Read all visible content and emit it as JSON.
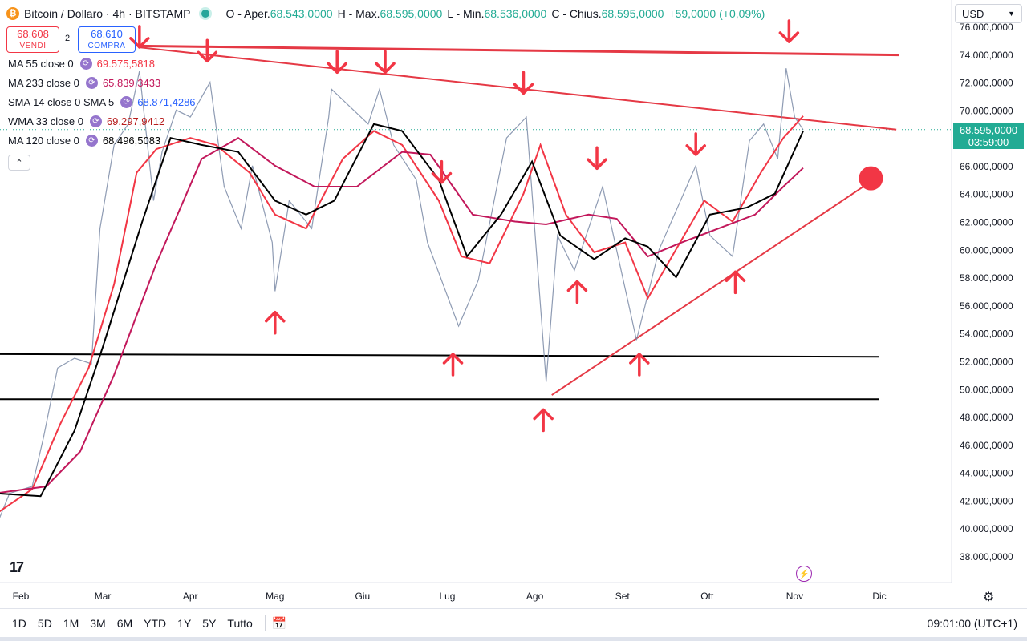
{
  "header": {
    "coin_symbol": "₿",
    "title": "Bitcoin / Dollaro · 4h · BITSTAMP",
    "ohlc": [
      {
        "k": "O - Aper.",
        "v": "68.543,0000"
      },
      {
        "k": "H - Max.",
        "v": "68.595,0000"
      },
      {
        "k": "L - Min.",
        "v": "68.536,0000"
      },
      {
        "k": "C - Chius.",
        "v": "68.595,0000"
      },
      {
        "k": "",
        "v": "+59,0000 (+0,09%)"
      }
    ]
  },
  "trade": {
    "sell_price": "68.608",
    "sell_label": "VENDI",
    "spread": "2",
    "buy_price": "68.610",
    "buy_label": "COMPRA"
  },
  "indicators": [
    {
      "label": "MA 55 close 0",
      "value": "69.575,5818",
      "color": "#f23645"
    },
    {
      "label": "MA 233 close 0",
      "value": "65.839,3433",
      "color": "#c2185b"
    },
    {
      "label": "SMA 14 close 0 SMA 5",
      "value": "68.871,4286",
      "color": "#2962ff"
    },
    {
      "label": "WMA 33 close 0",
      "value": "69.297,9412",
      "color": "#b71c1c"
    },
    {
      "label": "MA 120 close 0",
      "value": "68.496,5083",
      "color": "#000000"
    }
  ],
  "currency": "USD",
  "price_label": {
    "price": "68.595,0000",
    "countdown": "03:59:00"
  },
  "timeframes": [
    "1D",
    "5D",
    "1M",
    "3M",
    "6M",
    "YTD",
    "1Y",
    "5Y",
    "Tutto"
  ],
  "clock": "09:01:00 (UTC+1)",
  "logo": "17",
  "chart_data": {
    "type": "line",
    "symbol": "BTC/USD",
    "interval": "4h",
    "ylim": [
      36800,
      76800
    ],
    "y_ticks": [
      {
        "value": 38000,
        "label": "38.000,0000"
      },
      {
        "value": 40000,
        "label": "40.000,0000"
      },
      {
        "value": 42000,
        "label": "42.000,0000"
      },
      {
        "value": 44000,
        "label": "44.000,0000"
      },
      {
        "value": 46000,
        "label": "46.000,0000"
      },
      {
        "value": 48000,
        "label": "48.000,0000"
      },
      {
        "value": 50000,
        "label": "50.000,0000"
      },
      {
        "value": 52000,
        "label": "52.000,0000"
      },
      {
        "value": 54000,
        "label": "54.000,0000"
      },
      {
        "value": 56000,
        "label": "56.000,0000"
      },
      {
        "value": 58000,
        "label": "58.000,0000"
      },
      {
        "value": 60000,
        "label": "60.000,0000"
      },
      {
        "value": 62000,
        "label": "62.000,0000"
      },
      {
        "value": 64000,
        "label": "64.000,0000"
      },
      {
        "value": 66000,
        "label": "66.000,0000"
      },
      {
        "value": 68000,
        "label": "68.000,0000"
      },
      {
        "value": 70000,
        "label": "70.000,0000"
      },
      {
        "value": 72000,
        "label": "72.000,0000"
      },
      {
        "value": 74000,
        "label": "74.000,0000"
      },
      {
        "value": 76000,
        "label": "76.000,0000"
      }
    ],
    "x_ticks": [
      {
        "label": "Feb",
        "date": "2024-02-01"
      },
      {
        "label": "Mar",
        "date": "2024-03-01"
      },
      {
        "label": "Apr",
        "date": "2024-04-01"
      },
      {
        "label": "Mag",
        "date": "2024-05-01"
      },
      {
        "label": "Giu",
        "date": "2024-06-01"
      },
      {
        "label": "Lug",
        "date": "2024-07-01"
      },
      {
        "label": "Ago",
        "date": "2024-08-01"
      },
      {
        "label": "Set",
        "date": "2024-09-01"
      },
      {
        "label": "Ott",
        "date": "2024-10-01"
      },
      {
        "label": "Nov",
        "date": "2024-11-01"
      },
      {
        "label": "Dic",
        "date": "2024-12-01"
      }
    ],
    "price": [
      [
        "2024-01-23",
        40000
      ],
      [
        "2024-01-28",
        42500
      ],
      [
        "2024-02-05",
        43000
      ],
      [
        "2024-02-09",
        46500
      ],
      [
        "2024-02-14",
        51500
      ],
      [
        "2024-02-20",
        52200
      ],
      [
        "2024-02-26",
        51800
      ],
      [
        "2024-02-29",
        61500
      ],
      [
        "2024-03-05",
        67500
      ],
      [
        "2024-03-10",
        69000
      ],
      [
        "2024-03-14",
        72800
      ],
      [
        "2024-03-19",
        63500
      ],
      [
        "2024-03-22",
        67000
      ],
      [
        "2024-03-27",
        70000
      ],
      [
        "2024-04-01",
        69500
      ],
      [
        "2024-04-08",
        72000
      ],
      [
        "2024-04-13",
        64500
      ],
      [
        "2024-04-19",
        61500
      ],
      [
        "2024-04-23",
        66000
      ],
      [
        "2024-04-30",
        60500
      ],
      [
        "2024-05-01",
        57000
      ],
      [
        "2024-05-06",
        63500
      ],
      [
        "2024-05-14",
        61500
      ],
      [
        "2024-05-20",
        69500
      ],
      [
        "2024-05-21",
        71500
      ],
      [
        "2024-06-03",
        69000
      ],
      [
        "2024-06-07",
        71500
      ],
      [
        "2024-06-12",
        67500
      ],
      [
        "2024-06-20",
        65000
      ],
      [
        "2024-06-24",
        60500
      ],
      [
        "2024-07-05",
        54500
      ],
      [
        "2024-07-12",
        57800
      ],
      [
        "2024-07-22",
        68000
      ],
      [
        "2024-07-29",
        69500
      ],
      [
        "2024-08-05",
        50500
      ],
      [
        "2024-08-09",
        61000
      ],
      [
        "2024-08-15",
        58500
      ],
      [
        "2024-08-25",
        64500
      ],
      [
        "2024-09-06",
        53500
      ],
      [
        "2024-09-14",
        60000
      ],
      [
        "2024-09-27",
        66000
      ],
      [
        "2024-10-02",
        61000
      ],
      [
        "2024-10-10",
        59500
      ],
      [
        "2024-10-16",
        67800
      ],
      [
        "2024-10-21",
        69000
      ],
      [
        "2024-10-26",
        66500
      ],
      [
        "2024-10-29",
        73000
      ],
      [
        "2024-11-01",
        69500
      ],
      [
        "2024-11-04",
        68595
      ]
    ],
    "series": [
      {
        "name": "MA 55 close 0",
        "color": "#f23645",
        "points": [
          [
            "2024-01-23",
            41000
          ],
          [
            "2024-02-05",
            42800
          ],
          [
            "2024-02-15",
            47500
          ],
          [
            "2024-02-25",
            51500
          ],
          [
            "2024-03-05",
            57500
          ],
          [
            "2024-03-13",
            65500
          ],
          [
            "2024-03-20",
            67200
          ],
          [
            "2024-04-01",
            68000
          ],
          [
            "2024-04-10",
            67500
          ],
          [
            "2024-04-22",
            65500
          ],
          [
            "2024-05-01",
            62500
          ],
          [
            "2024-05-12",
            61500
          ],
          [
            "2024-05-25",
            66500
          ],
          [
            "2024-06-05",
            68500
          ],
          [
            "2024-06-15",
            67500
          ],
          [
            "2024-06-28",
            63500
          ],
          [
            "2024-07-06",
            59500
          ],
          [
            "2024-07-16",
            59000
          ],
          [
            "2024-07-28",
            64000
          ],
          [
            "2024-08-03",
            67500
          ],
          [
            "2024-08-12",
            62500
          ],
          [
            "2024-08-22",
            59800
          ],
          [
            "2024-09-02",
            60500
          ],
          [
            "2024-09-10",
            56500
          ],
          [
            "2024-09-20",
            60000
          ],
          [
            "2024-09-30",
            63500
          ],
          [
            "2024-10-10",
            62000
          ],
          [
            "2024-10-20",
            65500
          ],
          [
            "2024-10-28",
            68000
          ],
          [
            "2024-11-04",
            69575
          ]
        ]
      },
      {
        "name": "MA 233 close 0",
        "color": "#c2185b",
        "points": [
          [
            "2024-01-23",
            42500
          ],
          [
            "2024-02-10",
            43000
          ],
          [
            "2024-02-22",
            45500
          ],
          [
            "2024-03-05",
            51000
          ],
          [
            "2024-03-20",
            59000
          ],
          [
            "2024-04-05",
            66500
          ],
          [
            "2024-04-18",
            68000
          ],
          [
            "2024-05-01",
            66000
          ],
          [
            "2024-05-15",
            64500
          ],
          [
            "2024-05-30",
            64500
          ],
          [
            "2024-06-15",
            67000
          ],
          [
            "2024-06-25",
            66800
          ],
          [
            "2024-07-10",
            62500
          ],
          [
            "2024-07-25",
            62000
          ],
          [
            "2024-08-05",
            61800
          ],
          [
            "2024-08-20",
            62500
          ],
          [
            "2024-08-30",
            62200
          ],
          [
            "2024-09-10",
            59500
          ],
          [
            "2024-09-22",
            60500
          ],
          [
            "2024-10-05",
            61500
          ],
          [
            "2024-10-18",
            62500
          ],
          [
            "2024-10-28",
            64500
          ],
          [
            "2024-11-04",
            65839
          ]
        ]
      },
      {
        "name": "MA 120 close 0",
        "color": "#000000",
        "points": [
          [
            "2024-01-23",
            42500
          ],
          [
            "2024-02-08",
            42300
          ],
          [
            "2024-02-20",
            47000
          ],
          [
            "2024-03-01",
            53000
          ],
          [
            "2024-03-15",
            62000
          ],
          [
            "2024-03-25",
            68000
          ],
          [
            "2024-04-05",
            67500
          ],
          [
            "2024-04-18",
            67000
          ],
          [
            "2024-05-01",
            63500
          ],
          [
            "2024-05-12",
            62500
          ],
          [
            "2024-05-22",
            63500
          ],
          [
            "2024-06-05",
            69000
          ],
          [
            "2024-06-15",
            68500
          ],
          [
            "2024-06-28",
            65000
          ],
          [
            "2024-07-08",
            59500
          ],
          [
            "2024-07-20",
            62500
          ],
          [
            "2024-07-31",
            66300
          ],
          [
            "2024-08-10",
            61000
          ],
          [
            "2024-08-22",
            59300
          ],
          [
            "2024-09-02",
            60800
          ],
          [
            "2024-09-10",
            60200
          ],
          [
            "2024-09-20",
            58000
          ],
          [
            "2024-10-02",
            62500
          ],
          [
            "2024-10-15",
            63000
          ],
          [
            "2024-10-25",
            64000
          ],
          [
            "2024-11-04",
            68496
          ]
        ]
      }
    ],
    "drawings": {
      "horizontal_lines": [
        {
          "from": "2024-01-20",
          "to": "2024-12-01",
          "y1": 52500,
          "y2": 52300,
          "color": "#000000"
        },
        {
          "from": "2024-01-20",
          "to": "2024-12-01",
          "y1": 49250,
          "y2": 49250,
          "color": "#000000"
        },
        {
          "from": "2024-03-14",
          "to": "2024-12-08",
          "y1": 74600,
          "y2": 73950,
          "color": "#e53945"
        }
      ],
      "trend_lines": [
        {
          "from": "2024-03-14",
          "to": "2024-12-07",
          "y1": 74500,
          "y2": 68600,
          "color": "#e53945"
        },
        {
          "from": "2024-08-07",
          "to": "2024-11-26",
          "y1": 49550,
          "y2": 64600,
          "color": "#e53945"
        }
      ],
      "down_arrows": [
        [
          "2024-03-14",
          75200
        ],
        [
          "2024-04-07",
          74200
        ],
        [
          "2024-05-23",
          73400
        ],
        [
          "2024-06-09",
          73400
        ],
        [
          "2024-07-28",
          71900
        ],
        [
          "2024-06-29",
          65500
        ],
        [
          "2024-08-23",
          66500
        ],
        [
          "2024-09-27",
          67500
        ],
        [
          "2024-10-30",
          75600
        ]
      ],
      "up_arrows": [
        [
          "2024-05-01",
          54800
        ],
        [
          "2024-07-03",
          51800
        ],
        [
          "2024-08-04",
          47800
        ],
        [
          "2024-08-16",
          57000
        ],
        [
          "2024-09-07",
          51800
        ],
        [
          "2024-10-11",
          57700
        ]
      ],
      "marker": {
        "date": "2024-11-28",
        "value": 65100,
        "color": "#f23645"
      }
    },
    "current_price": 68595
  }
}
